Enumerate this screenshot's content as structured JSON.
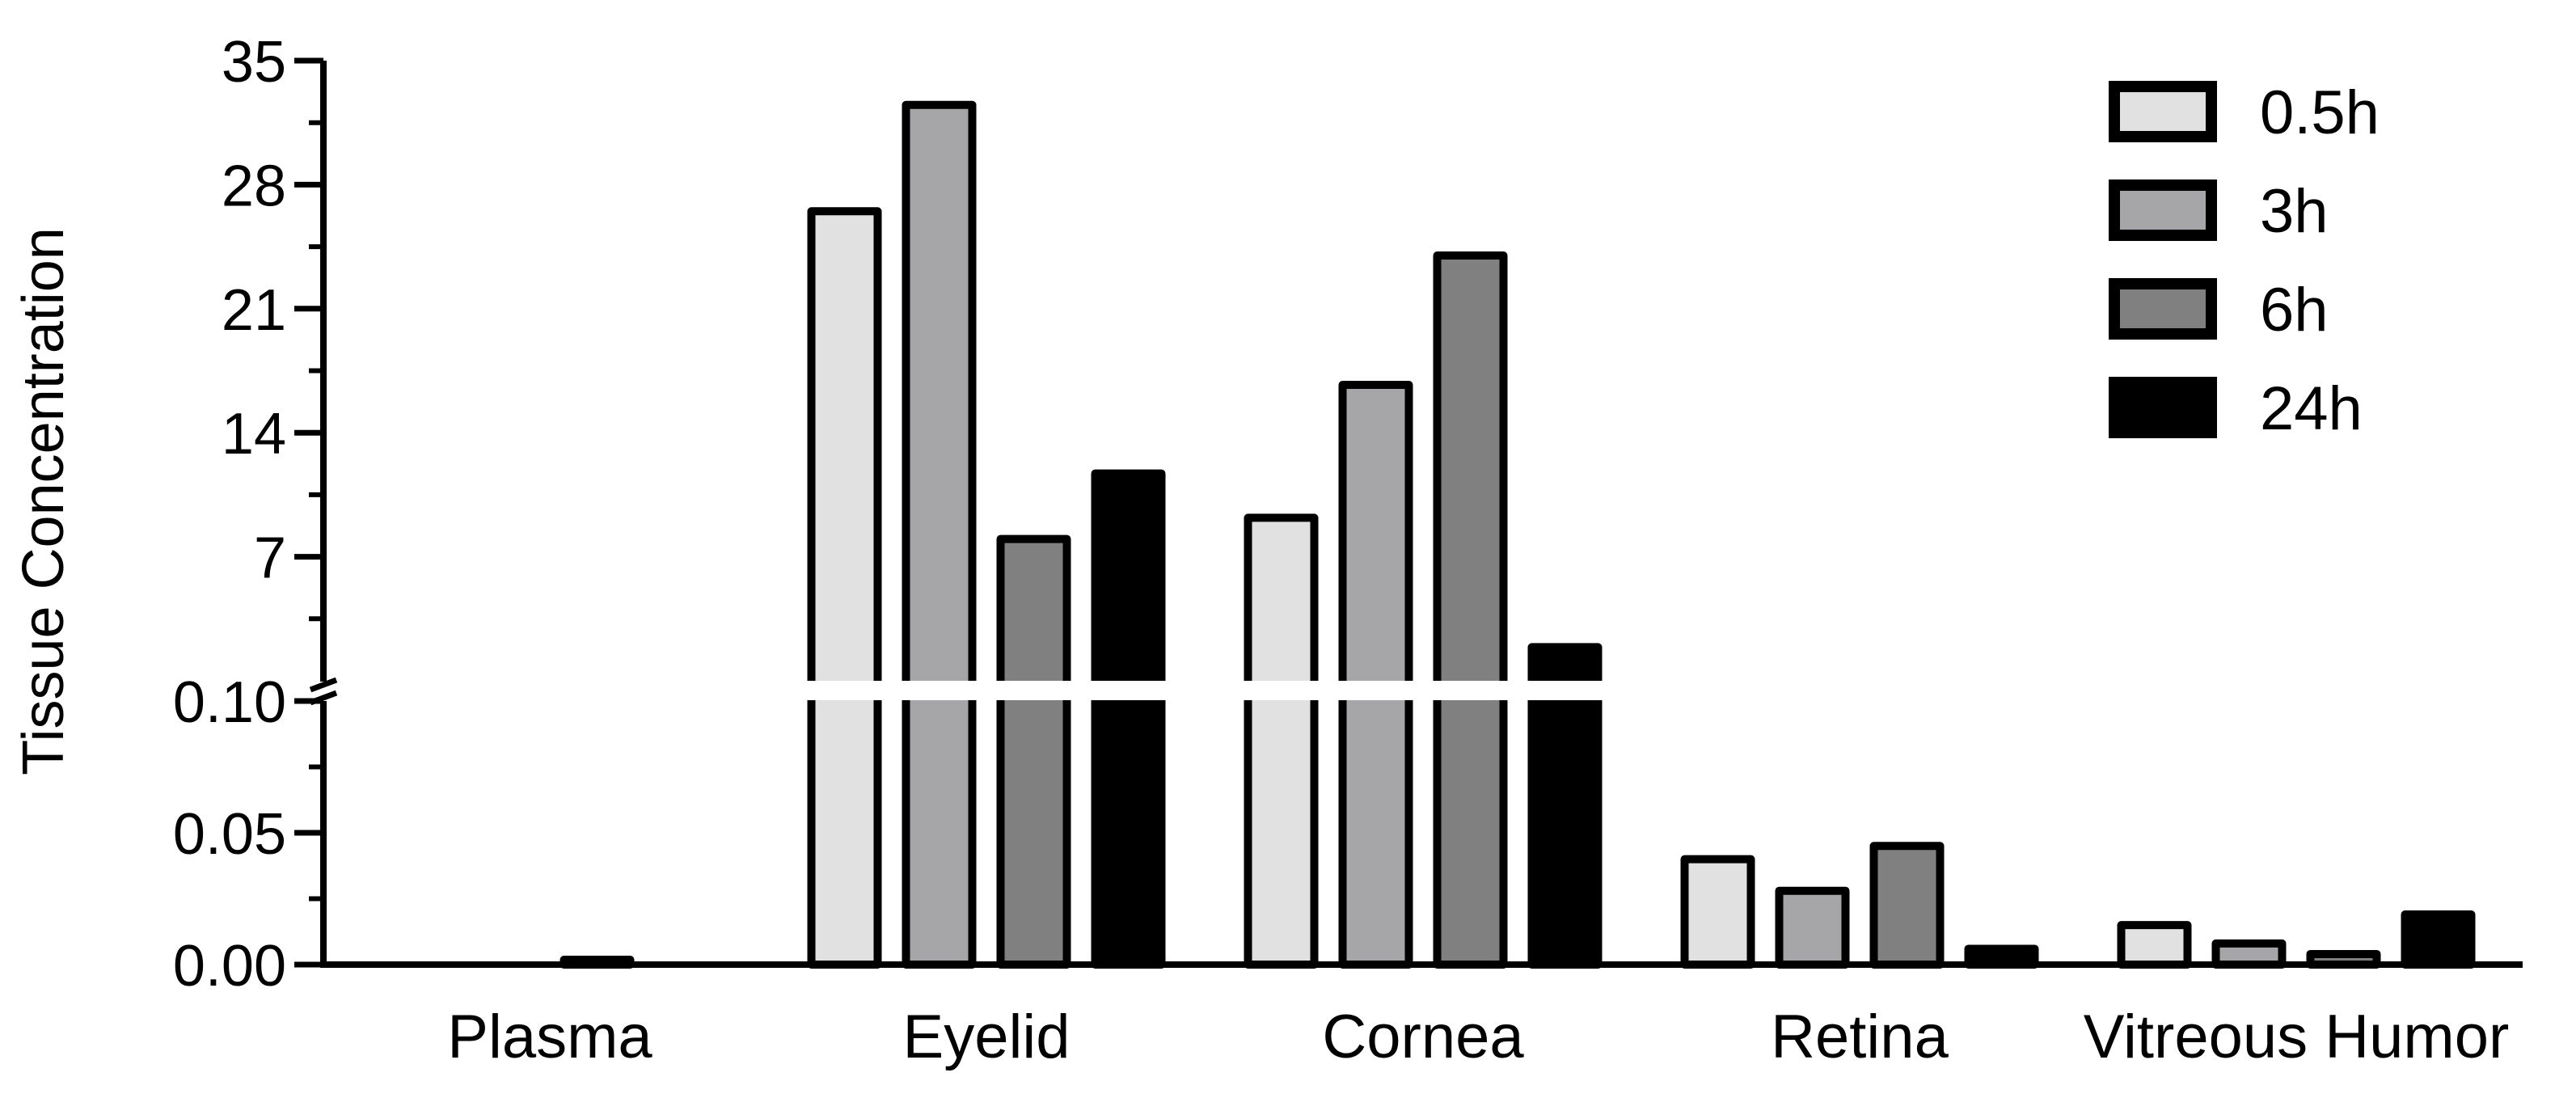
{
  "chart_data": {
    "type": "bar",
    "ylabel": "Tissue Concentration",
    "xlabel": "",
    "title": "",
    "categories": [
      "Plasma",
      "Eyelid",
      "Cornea",
      "Retina",
      "Vitreous Humor"
    ],
    "series": [
      {
        "name": "0.5h",
        "color": "#e1e1e1",
        "values": [
          0,
          26.5,
          9.2,
          0.04,
          0.015
        ]
      },
      {
        "name": "3h",
        "color": "#a6a6a8",
        "values": [
          0,
          32.5,
          16.7,
          0.028,
          0.008
        ]
      },
      {
        "name": "6h",
        "color": "#808080",
        "values": [
          0.001,
          8.0,
          24.0,
          0.045,
          0.004
        ]
      },
      {
        "name": "24h",
        "color": "#000000",
        "values": [
          0,
          11.7,
          1.9,
          0.006,
          0.019
        ]
      }
    ],
    "y_axis_break": true,
    "y_lower_segment": {
      "range": [
        0,
        0.1
      ],
      "ticks": [
        "0.00",
        "0.05",
        "0.10"
      ]
    },
    "y_upper_segment": {
      "range": [
        0,
        35
      ],
      "ticks": [
        "7",
        "14",
        "21",
        "28",
        "35"
      ]
    },
    "legend_placement": "top-right",
    "grid": false
  }
}
